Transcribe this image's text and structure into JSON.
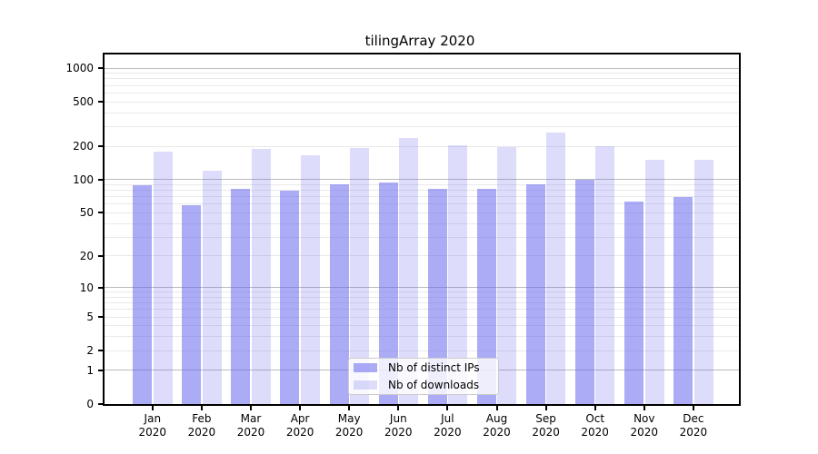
{
  "title": "tilingArray 2020",
  "colors": {
    "bar_base_rgb": "102,102,238",
    "grid_major": "#bbbbbb",
    "grid_minor": "#e9e9e9",
    "axis": "#000000",
    "legend_bg": "rgba(255,255,255,0.8)",
    "legend_border": "#cccccc"
  },
  "chart_data": {
    "type": "bar",
    "title": "tilingArray 2020",
    "xlabel": "",
    "ylabel": "",
    "yscale": "log10(1+y)",
    "ylim": [
      0,
      1325
    ],
    "y_ticks": [
      0,
      1,
      2,
      5,
      10,
      20,
      50,
      100,
      200,
      500,
      1000
    ],
    "y_major_grid": [
      1,
      10,
      100,
      1000
    ],
    "y_minor_grid": [
      2,
      3,
      4,
      5,
      6,
      7,
      8,
      9,
      20,
      30,
      40,
      50,
      60,
      70,
      80,
      90,
      200,
      300,
      400,
      500,
      600,
      700,
      800,
      900
    ],
    "grid": true,
    "legend_position": "lower center",
    "categories": [
      "Jan 2020",
      "Feb 2020",
      "Mar 2020",
      "Apr 2020",
      "May 2020",
      "Jun 2020",
      "Jul 2020",
      "Aug 2020",
      "Sep 2020",
      "Oct 2020",
      "Nov 2020",
      "Dec 2020"
    ],
    "series": [
      {
        "name": "Nb of distinct IPs",
        "alpha": 0.55,
        "values": [
          89,
          59,
          83,
          80,
          90,
          94,
          82,
          82,
          90,
          100,
          63,
          70
        ]
      },
      {
        "name": "Nb of downloads",
        "alpha": 0.22,
        "values": [
          179,
          120,
          188,
          165,
          192,
          238,
          202,
          195,
          263,
          200,
          150,
          151
        ]
      }
    ]
  }
}
